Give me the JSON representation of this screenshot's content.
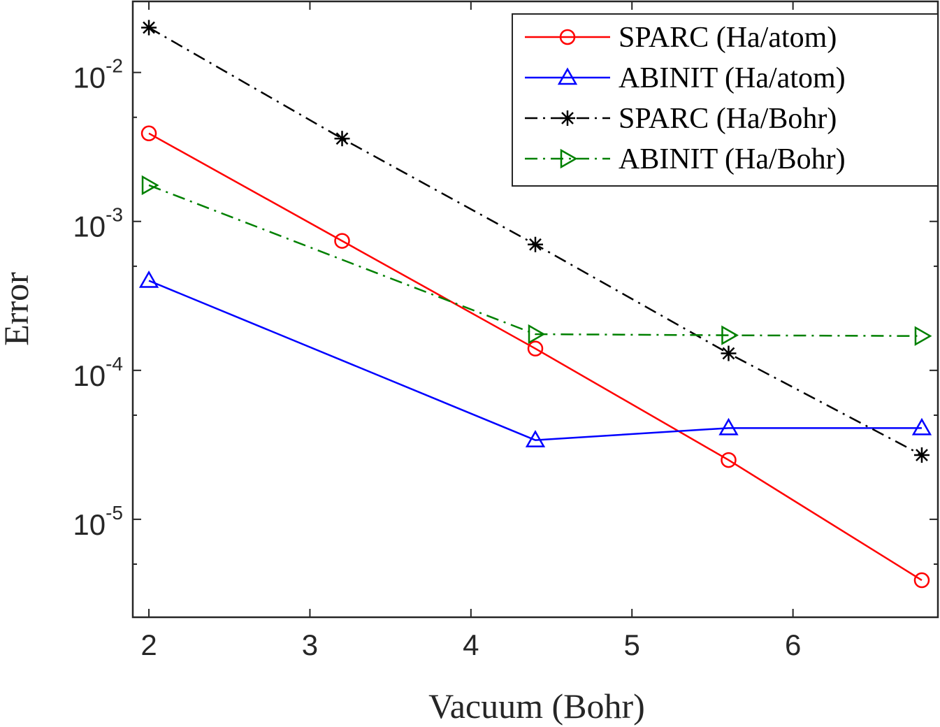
{
  "chart_data": {
    "type": "line",
    "title": "",
    "xlabel": "Vacuum (Bohr)",
    "ylabel": "Error",
    "xscale": "linear",
    "yscale": "log",
    "xlim": [
      1.9,
      6.9
    ],
    "ylim": [
      2.2e-06,
      0.03
    ],
    "xticks": [
      2,
      3,
      4,
      5,
      6
    ],
    "xtick_labels": [
      "2",
      "3",
      "4",
      "5",
      "6"
    ],
    "yticks": [
      {
        "value": 0.01,
        "base": "10",
        "exp": "-2"
      },
      {
        "value": 0.001,
        "base": "10",
        "exp": "-3"
      },
      {
        "value": 0.0001,
        "base": "10",
        "exp": "-4"
      },
      {
        "value": 1e-05,
        "base": "10",
        "exp": "-5"
      }
    ],
    "grid": false,
    "legend_position": "top-right",
    "series": [
      {
        "name": "SPARC (Ha/atom)",
        "color": "#ff0000",
        "line_style": "solid",
        "marker": "circle",
        "x": [
          2,
          3.2,
          4.4,
          5.6,
          6.8
        ],
        "y": [
          0.0039,
          0.00074,
          0.00014,
          2.5e-05,
          3.9e-06
        ]
      },
      {
        "name": "ABINIT (Ha/atom)",
        "color": "#0000ff",
        "line_style": "solid",
        "marker": "triangle-up",
        "x": [
          2,
          4.4,
          5.6,
          6.8
        ],
        "y": [
          0.0004,
          3.4e-05,
          4.1e-05,
          4.1e-05
        ]
      },
      {
        "name": "SPARC (Ha/Bohr)",
        "color": "#000000",
        "line_style": "dash-dot",
        "marker": "asterisk",
        "x": [
          2,
          3.2,
          4.4,
          5.6,
          6.8
        ],
        "y": [
          0.02,
          0.0036,
          0.0007,
          0.00013,
          2.7e-05
        ]
      },
      {
        "name": "ABINIT (Ha/Bohr)",
        "color": "#008000",
        "line_style": "dash-dot",
        "marker": "triangle-right",
        "x": [
          2,
          4.4,
          5.6,
          6.8
        ],
        "y": [
          0.00175,
          0.000175,
          0.000172,
          0.00017
        ]
      }
    ]
  }
}
